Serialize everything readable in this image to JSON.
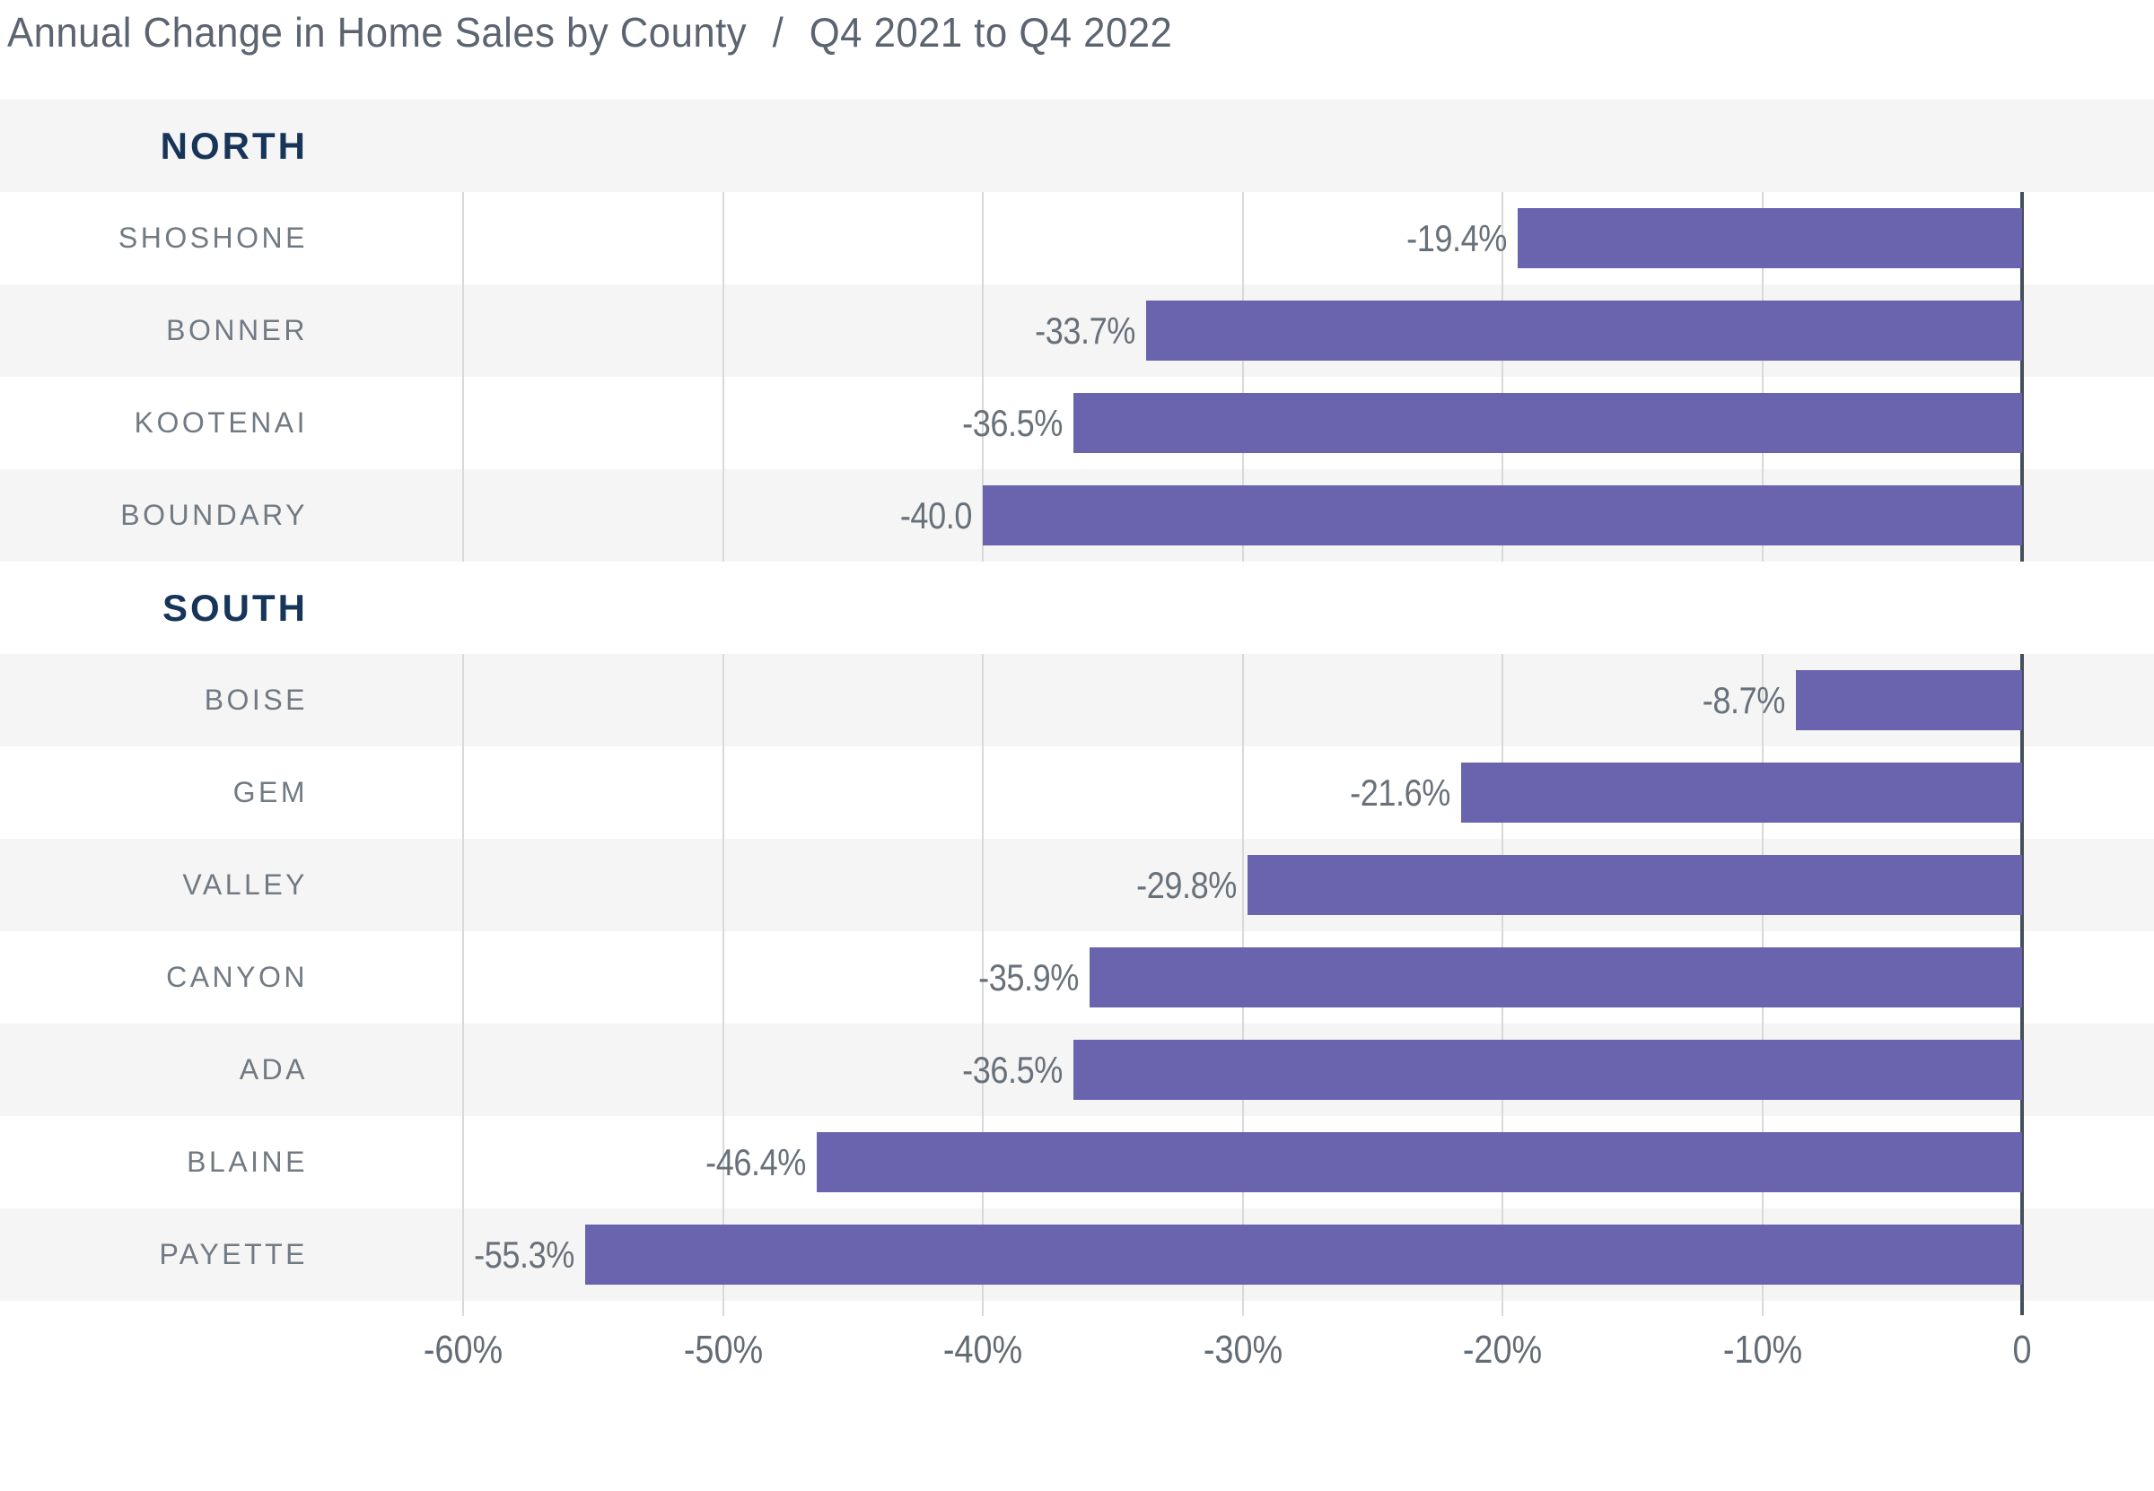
{
  "title": {
    "main": "Annual Change in Home Sales by County",
    "separator": "/",
    "period": "Q4 2021 to Q4 2022"
  },
  "colors": {
    "bar": "#6a63ad",
    "band_shade": "#f5f5f6",
    "band_plain": "#ffffff",
    "gridline": "#d7d9db",
    "zero_axis": "#454f59",
    "title_text": "#5b6470",
    "section_header": "#173459",
    "county_label": "#717a83",
    "value_label": "#68717a",
    "tick_label": "#636c75",
    "background": "#ffffff"
  },
  "chart_data": {
    "type": "bar",
    "orientation": "horizontal",
    "title": "Annual Change in Home Sales by County / Q4 2021 to Q4 2022",
    "value_unit": "percent",
    "xlim": [
      -60,
      0
    ],
    "grid": true,
    "x_ticks": [
      {
        "value": -60,
        "label": "-60%"
      },
      {
        "value": -50,
        "label": "-50%"
      },
      {
        "value": -40,
        "label": "-40%"
      },
      {
        "value": -30,
        "label": "-30%"
      },
      {
        "value": -20,
        "label": "-20%"
      },
      {
        "value": -10,
        "label": "-10%"
      },
      {
        "value": 0,
        "label": "0"
      }
    ],
    "groups": [
      {
        "label": "NORTH",
        "counties": [
          {
            "name": "SHOSHONE",
            "value": -19.4,
            "label": "-19.4%"
          },
          {
            "name": "BONNER",
            "value": -33.7,
            "label": "-33.7%"
          },
          {
            "name": "KOOTENAI",
            "value": -36.5,
            "label": "-36.5%"
          },
          {
            "name": "BOUNDARY",
            "value": -40.0,
            "label": "-40.0"
          }
        ]
      },
      {
        "label": "SOUTH",
        "counties": [
          {
            "name": "BOISE",
            "value": -8.7,
            "label": "-8.7%"
          },
          {
            "name": "GEM",
            "value": -21.6,
            "label": "-21.6%"
          },
          {
            "name": "VALLEY",
            "value": -29.8,
            "label": "-29.8%"
          },
          {
            "name": "CANYON",
            "value": -35.9,
            "label": "-35.9%"
          },
          {
            "name": "ADA",
            "value": -36.5,
            "label": "-36.5%"
          },
          {
            "name": "BLAINE",
            "value": -46.4,
            "label": "-46.4%"
          },
          {
            "name": "PAYETTE",
            "value": -55.3,
            "label": "-55.3%"
          }
        ]
      }
    ]
  }
}
